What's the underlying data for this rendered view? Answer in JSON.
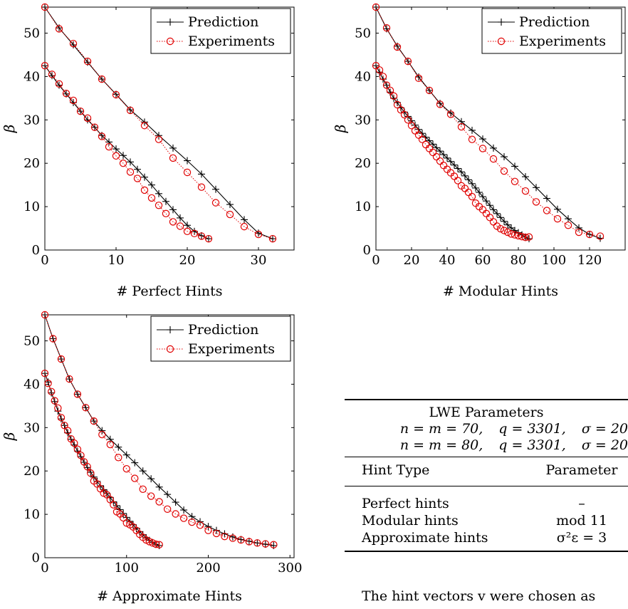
{
  "chart_data": [
    {
      "type": "line",
      "xlabel": "# Perfect Hints",
      "ylabel": "β",
      "xlim": [
        0,
        35
      ],
      "ylim": [
        0,
        56
      ],
      "xticks": [
        0,
        10,
        20,
        30
      ],
      "yticks": [
        0,
        10,
        20,
        30,
        40,
        50
      ],
      "legend_position": "top-right",
      "legend": [
        "Prediction",
        "Experiments"
      ],
      "series": [
        {
          "name": "Prediction",
          "group": 1,
          "x": [
            0,
            2,
            4,
            6,
            8,
            10,
            12,
            14,
            16,
            18,
            20,
            22,
            24,
            26,
            28,
            30,
            32
          ],
          "y": [
            56,
            51.2,
            47.3,
            43.3,
            39.4,
            35.9,
            32.3,
            29.5,
            26.4,
            23.5,
            20.6,
            17.5,
            14,
            10.5,
            7,
            3.9,
            2.6
          ]
        },
        {
          "name": "Experiments",
          "group": 1,
          "x": [
            0,
            2,
            4,
            6,
            8,
            10,
            12,
            14,
            16,
            18,
            20,
            22,
            24,
            26,
            28,
            30,
            32
          ],
          "y": [
            56,
            51,
            47.6,
            43.5,
            39.4,
            35.8,
            32.2,
            28.7,
            25.5,
            21.2,
            17.9,
            14.5,
            10.9,
            8.2,
            5.4,
            3.6,
            2.6
          ]
        },
        {
          "name": "Prediction",
          "group": 2,
          "x": [
            0,
            1,
            2,
            3,
            4,
            5,
            6,
            7,
            8,
            9,
            10,
            11,
            12,
            13,
            14,
            15,
            16,
            17,
            18,
            19,
            20,
            21,
            22,
            23
          ],
          "y": [
            42.5,
            40.2,
            38,
            36,
            34,
            32,
            30,
            28.3,
            26.4,
            24.9,
            23.3,
            21.8,
            20.3,
            18.6,
            16.8,
            15,
            13,
            11.2,
            9.3,
            7.4,
            5.7,
            4.3,
            3.3,
            2.6
          ]
        },
        {
          "name": "Experiments",
          "group": 2,
          "x": [
            0,
            1,
            2,
            3,
            4,
            5,
            6,
            7,
            8,
            9,
            10,
            11,
            12,
            13,
            14,
            15,
            16,
            17,
            18,
            19,
            20,
            21,
            22,
            23
          ],
          "y": [
            42.5,
            40.5,
            38.3,
            36.1,
            34.5,
            32,
            30.4,
            28.3,
            26.2,
            23.8,
            21.7,
            20,
            18,
            16.5,
            13.8,
            12,
            10.3,
            8.4,
            6.5,
            5.5,
            4.3,
            3.8,
            3.2,
            2.6
          ]
        }
      ]
    },
    {
      "type": "line",
      "xlabel": "# Modular Hints",
      "ylabel": "β",
      "xlim": [
        0,
        140
      ],
      "ylim": [
        0,
        56
      ],
      "xticks": [
        0,
        20,
        40,
        60,
        80,
        100,
        120
      ],
      "yticks": [
        0,
        10,
        20,
        30,
        40,
        50
      ],
      "legend_position": "top-right",
      "legend": [
        "Prediction",
        "Experiments"
      ],
      "series": [
        {
          "name": "Prediction",
          "group": 1,
          "x": [
            0,
            6,
            12,
            18,
            24,
            30,
            36,
            42,
            48,
            54,
            60,
            66,
            72,
            78,
            84,
            90,
            96,
            102,
            108,
            114,
            120,
            126
          ],
          "y": [
            56,
            51,
            47,
            43.5,
            39.9,
            36.8,
            33.8,
            31.6,
            29.6,
            27.6,
            25.6,
            23.5,
            21.5,
            19.3,
            16.9,
            14.4,
            11.9,
            9.4,
            7.2,
            5.1,
            3.6,
            2.7
          ]
        },
        {
          "name": "Experiments",
          "group": 1,
          "x": [
            0,
            6,
            12,
            18,
            24,
            30,
            36,
            42,
            48,
            54,
            60,
            66,
            72,
            78,
            84,
            90,
            96,
            102,
            108,
            114,
            120,
            126
          ],
          "y": [
            56,
            51.2,
            46.8,
            43.5,
            39.6,
            36.8,
            33.6,
            31.3,
            28.4,
            25.5,
            23.4,
            21,
            18.2,
            15.8,
            13.6,
            11.1,
            9.1,
            7.2,
            5.7,
            4.1,
            3.6,
            3.2
          ]
        },
        {
          "name": "Prediction",
          "group": 2,
          "x": [
            0,
            2,
            4,
            6,
            8,
            10,
            12,
            14,
            16,
            18,
            20,
            22,
            24,
            26,
            28,
            30,
            32,
            34,
            36,
            38,
            40,
            42,
            44,
            46,
            48,
            50,
            52,
            54,
            56,
            58,
            60,
            62,
            64,
            66,
            68,
            70,
            72,
            74,
            76,
            78,
            80,
            82,
            84,
            86
          ],
          "y": [
            42.5,
            41,
            39.4,
            38,
            36.4,
            35,
            34,
            32.8,
            31.8,
            30.8,
            29.8,
            28.8,
            27.8,
            26.9,
            26,
            25.2,
            24.4,
            23.6,
            22.8,
            22,
            21.2,
            20.4,
            19.6,
            18.8,
            18,
            17.1,
            16.2,
            15.3,
            14.3,
            13.3,
            12.3,
            11.3,
            10.3,
            9.3,
            8.4,
            7.5,
            6.6,
            5.8,
            5.1,
            4.5,
            4,
            3.5,
            3,
            2.6
          ]
        },
        {
          "name": "Experiments",
          "group": 2,
          "x": [
            0,
            2,
            4,
            6,
            8,
            10,
            12,
            14,
            16,
            18,
            20,
            22,
            24,
            26,
            28,
            30,
            32,
            34,
            36,
            38,
            40,
            42,
            44,
            46,
            48,
            50,
            52,
            54,
            56,
            58,
            60,
            62,
            64,
            66,
            68,
            70,
            72,
            74,
            76,
            78,
            80,
            82,
            84,
            86
          ],
          "y": [
            42.5,
            41.5,
            40,
            38,
            36.8,
            35.5,
            33.5,
            32.3,
            31.2,
            30,
            28.7,
            27.5,
            26.5,
            25.5,
            24.3,
            23.4,
            22.5,
            21.5,
            20.5,
            19.5,
            18.6,
            17.8,
            17,
            16,
            14.8,
            14.2,
            13.3,
            12.3,
            10.8,
            10,
            9.3,
            8.4,
            7.5,
            6.5,
            5.5,
            4.9,
            4.5,
            4.1,
            3.7,
            3.5,
            3.3,
            3.1,
            2.9,
            3
          ]
        }
      ]
    },
    {
      "type": "line",
      "xlabel": "# Approximate Hints",
      "ylabel": "β",
      "xlim": [
        0,
        305
      ],
      "ylim": [
        0,
        56
      ],
      "xticks": [
        0,
        100,
        200,
        300
      ],
      "yticks": [
        0,
        10,
        20,
        30,
        40,
        50
      ],
      "legend_position": "top-right",
      "legend": [
        "Prediction",
        "Experiments"
      ],
      "series": [
        {
          "name": "Prediction",
          "group": 1,
          "x": [
            0,
            10,
            20,
            30,
            40,
            50,
            60,
            70,
            80,
            90,
            100,
            110,
            120,
            130,
            140,
            150,
            160,
            170,
            180,
            190,
            200,
            210,
            220,
            230,
            240,
            250,
            260,
            270,
            280
          ],
          "y": [
            56,
            50.5,
            45.8,
            41.2,
            37.7,
            34.6,
            31.5,
            29.3,
            27.3,
            25.5,
            23.7,
            21.9,
            20,
            18.2,
            16.3,
            14.6,
            12.8,
            11,
            9.5,
            8.3,
            7.2,
            6.3,
            5.5,
            4.8,
            4.2,
            3.8,
            3.4,
            3.1,
            2.8
          ]
        },
        {
          "name": "Experiments",
          "group": 1,
          "x": [
            0,
            10,
            20,
            30,
            40,
            50,
            60,
            70,
            80,
            90,
            100,
            110,
            120,
            130,
            140,
            150,
            160,
            170,
            180,
            190,
            200,
            210,
            220,
            230,
            240,
            250,
            260,
            270,
            280
          ],
          "y": [
            56,
            50.5,
            45.8,
            41.2,
            37.7,
            34.6,
            31.5,
            28.4,
            26.1,
            23.1,
            20.5,
            18.3,
            15.8,
            14.2,
            12.9,
            11.2,
            10.1,
            9.1,
            8.2,
            7.5,
            6.3,
            5.6,
            4.9,
            4.5,
            4.1,
            3.7,
            3.4,
            3.2,
            3
          ]
        },
        {
          "name": "Prediction",
          "group": 2,
          "x": [
            0,
            4,
            8,
            12,
            16,
            20,
            24,
            28,
            32,
            36,
            40,
            44,
            48,
            52,
            56,
            60,
            64,
            68,
            72,
            76,
            80,
            84,
            88,
            92,
            96,
            100,
            104,
            108,
            112,
            116,
            120,
            124,
            128,
            132,
            136,
            140
          ],
          "y": [
            42.5,
            40.5,
            38,
            36,
            33.8,
            32,
            30.5,
            28.8,
            27.3,
            26,
            24.6,
            23.3,
            22,
            20.8,
            19.7,
            18.6,
            17.6,
            16.6,
            15.7,
            14.8,
            13.9,
            12.9,
            12,
            11.1,
            10.2,
            9.3,
            8.4,
            7.6,
            6.8,
            6,
            5.3,
            4.6,
            4,
            3.5,
            3.1,
            2.8
          ]
        },
        {
          "name": "Experiments",
          "group": 2,
          "x": [
            0,
            4,
            8,
            12,
            16,
            20,
            24,
            28,
            32,
            36,
            40,
            44,
            48,
            52,
            56,
            60,
            64,
            68,
            72,
            76,
            80,
            84,
            88,
            92,
            96,
            100,
            104,
            108,
            112,
            116,
            120,
            124,
            128,
            132,
            136,
            140
          ],
          "y": [
            42.5,
            40.2,
            38.3,
            36.2,
            34.5,
            32.3,
            30.5,
            29.3,
            27.4,
            26.4,
            25,
            23.6,
            22.1,
            21,
            19.5,
            17.7,
            17,
            15.9,
            14.9,
            14.5,
            13.4,
            12.2,
            10.6,
            10.1,
            9.2,
            8,
            7.6,
            7.1,
            6.3,
            5.4,
            4.7,
            4.1,
            3.7,
            3.4,
            3.1,
            3
          ]
        }
      ]
    }
  ],
  "table": {
    "title": "LWE Parameters",
    "param_lines": [
      [
        "n = m = 70,",
        "q = 3301,",
        "σ = 20"
      ],
      [
        "n = m = 80,",
        "q = 3301,",
        "σ = 20"
      ]
    ],
    "headers": [
      "Hint Type",
      "Parameter"
    ],
    "rows": [
      [
        "Perfect hints",
        "–"
      ],
      [
        "Modular hints",
        "mod 11"
      ],
      [
        "Approximate hints",
        "σ²ε = 3"
      ]
    ]
  },
  "caption": "The hint vectors v were chosen as"
}
